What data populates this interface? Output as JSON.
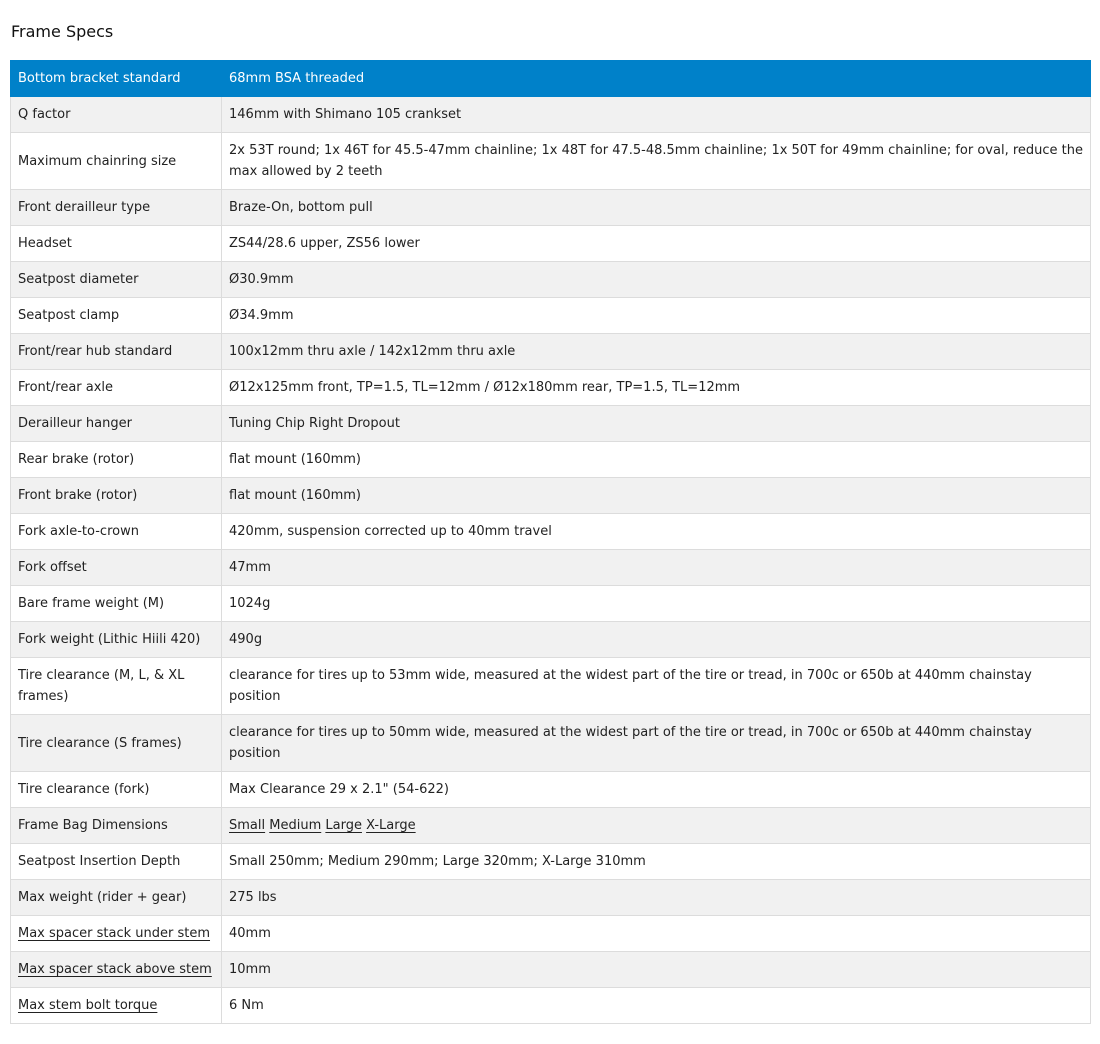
{
  "title": "Frame Specs",
  "rows": [
    {
      "key": "Bottom bracket standard",
      "value": "68mm BSA threaded"
    },
    {
      "key": "Q factor",
      "value": "146mm with Shimano 105 crankset"
    },
    {
      "key": "Maximum chainring size",
      "value": "2x 53T round; 1x 46T for 45.5-47mm chainline; 1x 48T for 47.5-48.5mm chainline; 1x 50T for 49mm chainline; for oval, reduce the max allowed by 2 teeth"
    },
    {
      "key": "Front derailleur type",
      "value": "Braze-On, bottom pull"
    },
    {
      "key": "Headset",
      "value": "ZS44/28.6 upper, ZS56 lower"
    },
    {
      "key": "Seatpost diameter",
      "value": "Ø30.9mm"
    },
    {
      "key": "Seatpost clamp",
      "value": "Ø34.9mm"
    },
    {
      "key": "Front/rear hub standard",
      "value": "100x12mm thru axle / 142x12mm thru axle"
    },
    {
      "key": "Front/rear axle",
      "value": "Ø12x125mm front, TP=1.5, TL=12mm / Ø12x180mm rear, TP=1.5, TL=12mm"
    },
    {
      "key": "Derailleur hanger",
      "value": "Tuning Chip Right Dropout"
    },
    {
      "key": "Rear brake (rotor)",
      "value": "flat mount (160mm)"
    },
    {
      "key": "Front brake (rotor)",
      "value": "flat mount (160mm)"
    },
    {
      "key": "Fork axle-to-crown",
      "value": "420mm, suspension corrected up to 40mm travel"
    },
    {
      "key": "Fork offset",
      "value": "47mm"
    },
    {
      "key": "Bare frame weight (M)",
      "value": "1024g"
    },
    {
      "key": "Fork weight (Lithic Hiili 420)",
      "value": "490g"
    },
    {
      "key": "Tire clearance (M, L, & XL frames)",
      "value": "clearance for tires up to 53mm wide, measured at the widest part of the tire or tread, in 700c or 650b at 440mm chainstay position"
    },
    {
      "key": "Tire clearance (S frames)",
      "value": "clearance for tires up to 50mm wide, measured at the widest part of the tire or tread, in 700c or 650b at 440mm chainstay position"
    },
    {
      "key": "Tire clearance (fork)",
      "value": "Max Clearance 29 x 2.1\" (54-622)"
    },
    {
      "key": "Frame Bag Dimensions",
      "links": [
        "Small",
        "Medium",
        "Large",
        "X-Large"
      ]
    },
    {
      "key": "Seatpost Insertion Depth",
      "value": "Small 250mm; Medium 290mm; Large 320mm; X-Large 310mm"
    },
    {
      "key": "Max weight (rider + gear)",
      "value": "275 lbs"
    },
    {
      "key": "Max spacer stack under stem",
      "value": "40mm",
      "key_link": true
    },
    {
      "key": "Max spacer stack above stem",
      "value": "10mm",
      "key_link": true
    },
    {
      "key": "Max stem bolt torque",
      "value": "6 Nm",
      "key_link": true
    }
  ],
  "colors": {
    "header_row": "#0081c9",
    "alt_row": "#f1f1f1"
  }
}
